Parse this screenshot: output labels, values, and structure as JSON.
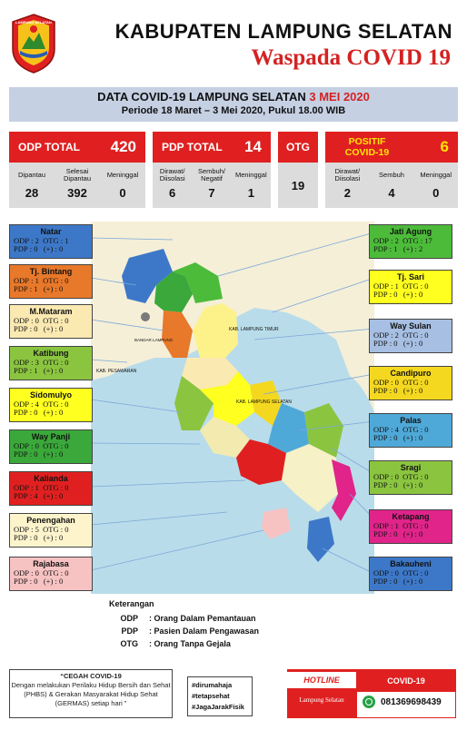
{
  "header": {
    "logo_text": "LAMPUNG SELATAN",
    "title": "KABUPATEN LAMPUNG SELATAN",
    "subtitle": "Waspada COVID 19"
  },
  "data_header": {
    "line1": "DATA COVID-19 LAMPUNG SELATAN",
    "date": "3 MEI 2020",
    "line2": "Periode 18 Maret – 3 Mei 2020, Pukul 18.00 WIB"
  },
  "stats": {
    "odp": {
      "label": "ODP TOTAL",
      "total": "420",
      "cols": [
        {
          "label": "Dipantau",
          "value": "28"
        },
        {
          "label": "Selesai Dipantau",
          "value": "392"
        },
        {
          "label": "Meninggal",
          "value": "0"
        }
      ]
    },
    "pdp": {
      "label": "PDP TOTAL",
      "total": "14",
      "cols": [
        {
          "label": "Dirawat/ Diisolasi",
          "value": "6"
        },
        {
          "label": "Sembuh/ Negatif",
          "value": "7"
        },
        {
          "label": "Meninggal",
          "value": "1"
        }
      ]
    },
    "otg": {
      "label": "OTG",
      "total": "19"
    },
    "positif": {
      "label": "POSITIF COVID-19",
      "total": "6",
      "cols": [
        {
          "label": "Dirawat/ Diisolasi",
          "value": "2"
        },
        {
          "label": "Sembuh",
          "value": "4"
        },
        {
          "label": "Meninggal",
          "value": "0"
        }
      ]
    }
  },
  "map_labels": {
    "lampung_timur": "KAB. LAMPUNG TIMUR",
    "pesawaran": "KAB. PESAWARAN",
    "lampung_selatan": "KAB. LAMPUNG SELATAN",
    "bandar_lampung": "BANDAR LAMPUNG"
  },
  "districts_left": [
    {
      "name": "Natar",
      "odp": "2",
      "otg": "1",
      "pdp": "0",
      "plus": "0",
      "color": "#3d78c8"
    },
    {
      "name": "Tj. Bintang",
      "odp": "1",
      "otg": "0",
      "pdp": "1",
      "plus": "0",
      "color": "#e8782a"
    },
    {
      "name": "M.Mataram",
      "odp": "0",
      "otg": "0",
      "pdp": "0",
      "plus": "0",
      "color": "#fbe9b2"
    },
    {
      "name": "Katibung",
      "odp": "3",
      "otg": "0",
      "pdp": "1",
      "plus": "0",
      "color": "#8bc540"
    },
    {
      "name": "Sidomulyo",
      "odp": "4",
      "otg": "0",
      "pdp": "0",
      "plus": "0",
      "color": "#ffff20"
    },
    {
      "name": "Way Panji",
      "odp": "0",
      "otg": "0",
      "pdp": "0",
      "plus": "0",
      "color": "#3aa83a"
    },
    {
      "name": "Kalianda",
      "odp": "1",
      "otg": "0",
      "pdp": "4",
      "plus": "0",
      "color": "#e02020"
    },
    {
      "name": "Penengahan",
      "odp": "5",
      "otg": "0",
      "pdp": "0",
      "plus": "0",
      "color": "#fdf4cc"
    },
    {
      "name": "Rajabasa",
      "odp": "0",
      "otg": "0",
      "pdp": "0",
      "plus": "0",
      "color": "#f7c2c2"
    }
  ],
  "districts_right": [
    {
      "name": "Jati Agung",
      "odp": "2",
      "otg": "17",
      "pdp": "1",
      "plus": "2",
      "color": "#4cbb3a"
    },
    {
      "name": "Tj. Sari",
      "odp": "1",
      "otg": "0",
      "pdp": "0",
      "plus": "0",
      "color": "#ffff20"
    },
    {
      "name": "Way Sulan",
      "odp": "2",
      "otg": "0",
      "pdp": "0",
      "plus": "0",
      "color": "#a7bfe3"
    },
    {
      "name": "Candipuro",
      "odp": "0",
      "otg": "0",
      "pdp": "0",
      "plus": "0",
      "color": "#f4d820"
    },
    {
      "name": "Palas",
      "odp": "4",
      "otg": "0",
      "pdp": "0",
      "plus": "0",
      "color": "#4fa9d8"
    },
    {
      "name": "Sragi",
      "odp": "0",
      "otg": "0",
      "pdp": "0",
      "plus": "0",
      "color": "#8bc540"
    },
    {
      "name": "Ketapang",
      "odp": "1",
      "otg": "0",
      "pdp": "0",
      "plus": "0",
      "color": "#e0248a"
    },
    {
      "name": "Bakauheni",
      "odp": "0",
      "otg": "0",
      "pdp": "0",
      "plus": "0",
      "color": "#3d78c8"
    }
  ],
  "labels": {
    "odp": "ODP",
    "otg": "OTG",
    "pdp": "PDP",
    "plus": "(+)"
  },
  "legend": {
    "title": "Keterangan",
    "items": [
      {
        "key": "ODP",
        "desc": ": Orang Dalam Pemantauan"
      },
      {
        "key": "PDP",
        "desc": ": Pasien Dalam Pengawasan"
      },
      {
        "key": "OTG",
        "desc": ": Orang Tanpa Gejala"
      }
    ]
  },
  "footer": {
    "cegah_title": "“CEGAH COVID-19",
    "cegah_text": "Dengan melakukan  Perilaku Hidup Bersih dan Sehat (PHBS) & Gerakan Masyarakat Hidup Sehat (GERMAS) setiap hari ”",
    "tags": [
      "#dirumahaja",
      "#tetapsehat",
      "#JagaJarakFisik"
    ],
    "hotline": "HOTLINE",
    "hotline_sub": "Lampung Selatan",
    "covid_label": "COVID-19",
    "phone": "081369698439"
  }
}
